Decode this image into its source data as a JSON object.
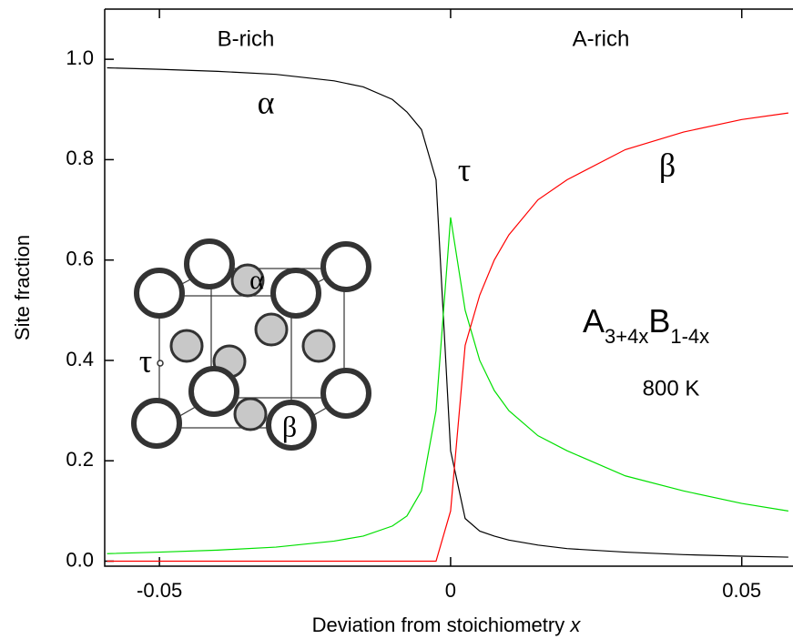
{
  "chart_data": {
    "type": "line",
    "x_label": "Deviation from stoichiometry",
    "x_label_variable": "x",
    "y_label": "Site fraction",
    "xlim": [
      -0.0594,
      0.0588
    ],
    "ylim": [
      -0.01,
      1.1
    ],
    "xticks": [
      -0.05,
      0,
      0.05
    ],
    "yticks": [
      {
        "value": 0,
        "label": "0.0"
      },
      {
        "value": 0.2,
        "label": "0.2"
      },
      {
        "value": 0.4,
        "label": "0.4"
      },
      {
        "value": 0.6,
        "label": "0.6"
      },
      {
        "value": 0.8,
        "label": "0.8"
      },
      {
        "value": 1.0,
        "label": "1.0"
      }
    ],
    "x": [
      -0.059,
      -0.05,
      -0.04,
      -0.03,
      -0.02,
      -0.015,
      -0.01,
      -0.0075,
      -0.005,
      -0.0025,
      0,
      0.0025,
      0.005,
      0.0075,
      0.01,
      0.015,
      0.02,
      0.03,
      0.04,
      0.05,
      0.058
    ],
    "series": [
      {
        "name": "α",
        "color": "#000000",
        "values": [
          0.983,
          0.98,
          0.976,
          0.97,
          0.957,
          0.945,
          0.92,
          0.895,
          0.86,
          0.76,
          0.22,
          0.085,
          0.06,
          0.05,
          0.042,
          0.032,
          0.025,
          0.018,
          0.013,
          0.01,
          0.008
        ]
      },
      {
        "name": "τ",
        "color": "#00e000",
        "values": [
          0.015,
          0.018,
          0.022,
          0.028,
          0.04,
          0.05,
          0.07,
          0.09,
          0.14,
          0.3,
          0.685,
          0.5,
          0.4,
          0.34,
          0.3,
          0.25,
          0.22,
          0.17,
          0.14,
          0.115,
          0.1
        ]
      },
      {
        "name": "β",
        "color": "#ff0000",
        "values": [
          0,
          0,
          0,
          0,
          0,
          0,
          0,
          0,
          0,
          0,
          0.1,
          0.43,
          0.53,
          0.6,
          0.65,
          0.72,
          0.76,
          0.82,
          0.855,
          0.88,
          0.893
        ]
      }
    ],
    "region_labels": [
      "B-rich",
      "A-rich"
    ],
    "formula_base": [
      "A",
      "B"
    ],
    "formula_sub": [
      "3+4x",
      "1-4x"
    ],
    "temperature": "800 K",
    "inset_labels": [
      "α",
      "τ",
      "β"
    ]
  }
}
